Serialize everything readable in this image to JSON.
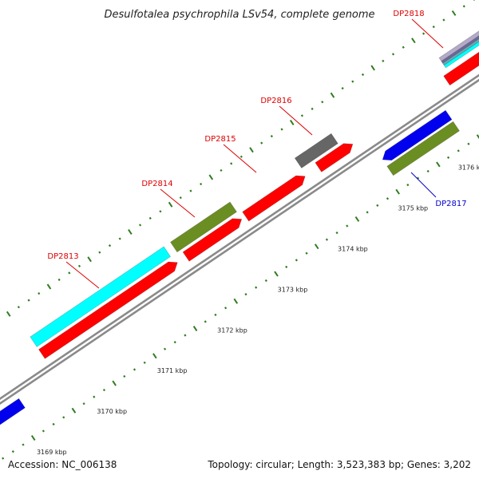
{
  "title": "Desulfotalea psychrophila LSv54, complete genome",
  "footer": {
    "accession": "Accession: NC_006138",
    "summary": "Topology: circular; Length: 3,523,383 bp; Genes: 3,202"
  },
  "colors": {
    "backbone": "#8a8a8a",
    "tick": "#2f7d1f",
    "label_forward": "#dd0000",
    "label_reverse": "#0000cc",
    "cds": "#ff0000",
    "cog_cyan": "#00ffff",
    "cog_olive": "#6b8e23",
    "cog_grey": "#666666",
    "reverse_strand": "#0000ee"
  },
  "kbp_ticks": [
    "3169 kbp",
    "3170 kbp",
    "3171 kbp",
    "3172 kbp",
    "3173 kbp",
    "3174 kbp",
    "3175 kbp",
    "3176 kbp"
  ],
  "genes": [
    {
      "name": "",
      "strand": "forward"
    },
    {
      "name": "DP2813",
      "strand": "forward",
      "cog": "cyan"
    },
    {
      "name": "DP2814",
      "strand": "forward",
      "cog": "olive"
    },
    {
      "name": "DP2815",
      "strand": "forward"
    },
    {
      "name": "DP2816",
      "strand": "forward",
      "cog": "grey"
    },
    {
      "name": "DP2817",
      "strand": "reverse",
      "cog": "olive"
    },
    {
      "name": "DP2818",
      "strand": "forward",
      "cog": "mixed"
    },
    {
      "name": "",
      "strand": "reverse"
    }
  ]
}
